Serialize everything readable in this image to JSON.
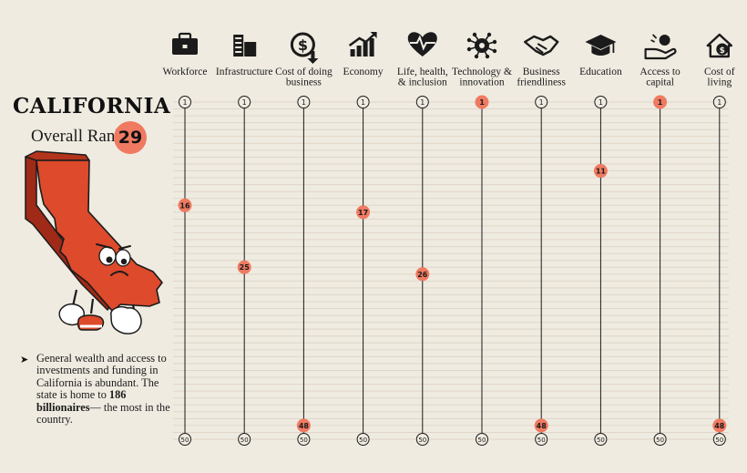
{
  "header": {
    "state_name": "CALIFORNIA",
    "overall_rank_label": "Overall Rank:",
    "overall_rank": "29"
  },
  "note": {
    "bullet": "➤",
    "text_before": "General wealth and access to investments and funding in California is abundant. The state is home to ",
    "highlight": "186 billionaires",
    "text_after": "— the most in the country."
  },
  "colors": {
    "accent": "#f07a61",
    "background": "#efebe1",
    "line": "#1b1b1b",
    "grid": "#e0d6c8",
    "state_fill": "#dd4a2c"
  },
  "chart_data": {
    "type": "scatter",
    "title": "",
    "xlabel": "",
    "ylabel": "",
    "y_axis_inverted": true,
    "ylim": [
      1,
      50
    ],
    "categories": [
      {
        "label": [
          "Workforce"
        ],
        "icon": "briefcase-icon"
      },
      {
        "label": [
          "Infrastructure"
        ],
        "icon": "buildings-icon"
      },
      {
        "label": [
          "Cost of doing",
          "business"
        ],
        "icon": "dollar-coin-icon"
      },
      {
        "label": [
          "Economy"
        ],
        "icon": "trend-chart-icon"
      },
      {
        "label": [
          "Life, health,",
          "& inclusion"
        ],
        "icon": "heartbeat-icon"
      },
      {
        "label": [
          "Technology &",
          "innovation"
        ],
        "icon": "circuit-head-icon"
      },
      {
        "label": [
          "Business",
          "friendliness"
        ],
        "icon": "handshake-icon"
      },
      {
        "label": [
          "Education"
        ],
        "icon": "graduation-cap-icon"
      },
      {
        "label": [
          "Access to",
          "capital"
        ],
        "icon": "hand-coin-icon"
      },
      {
        "label": [
          "Cost of",
          "living"
        ],
        "icon": "house-coin-icon"
      }
    ],
    "ranks": [
      16,
      25,
      48,
      17,
      26,
      1,
      48,
      11,
      1,
      48
    ],
    "top_label": "1",
    "bottom_label": "50"
  }
}
